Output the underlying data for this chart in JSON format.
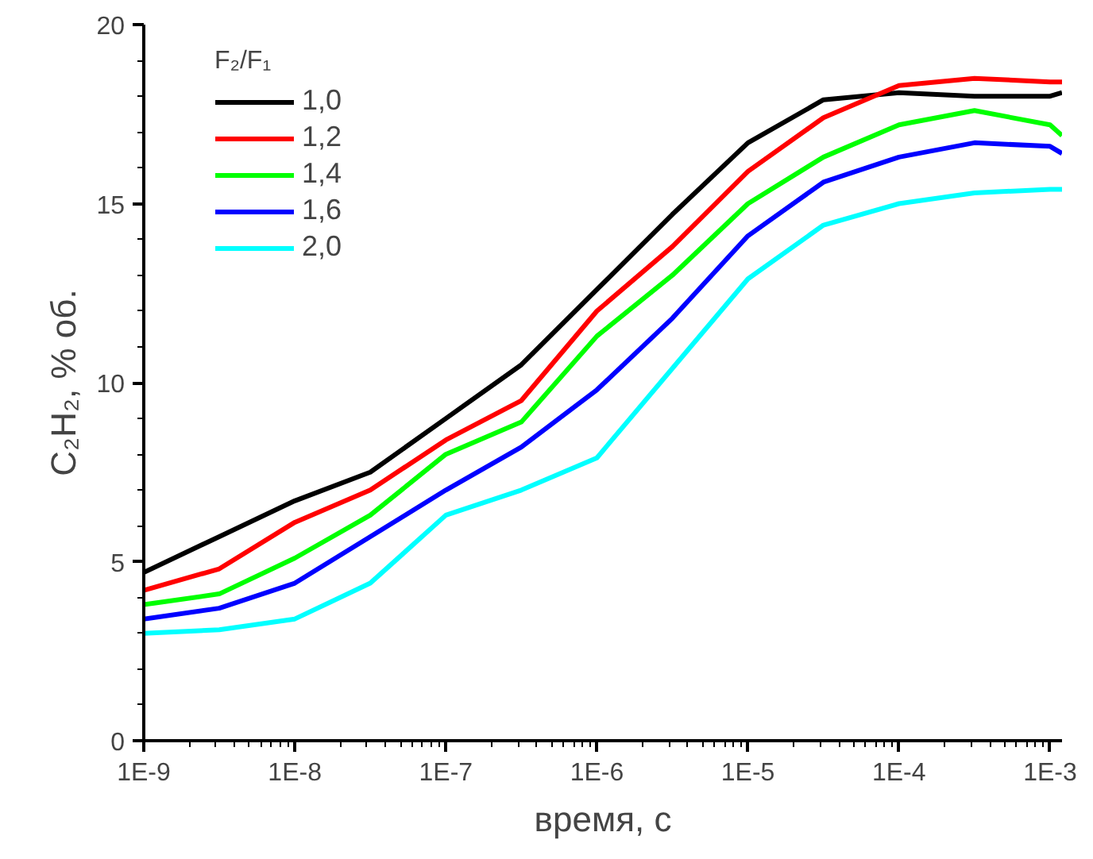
{
  "chart_data": {
    "type": "line",
    "xlabel": "время, с",
    "ylabel": "C₂H₂, % об.",
    "legend_title": "F₂/F₁",
    "legend": "top left",
    "grid": false,
    "log": "x",
    "x": [
      1e-09,
      3.16e-09,
      1e-08,
      3.16e-08,
      1e-07,
      3.16e-07,
      1e-06,
      3.16e-06,
      1e-05,
      3.16e-05,
      0.0001,
      0.000316,
      0.001,
      0.0012
    ],
    "xlim": [
      1e-09,
      0.0012
    ],
    "ylim": [
      0,
      20
    ],
    "xticks": [
      {
        "value": 1e-09,
        "label": "1E-9"
      },
      {
        "value": 1e-08,
        "label": "1E-8"
      },
      {
        "value": 1e-07,
        "label": "1E-7"
      },
      {
        "value": 1e-06,
        "label": "1E-6"
      },
      {
        "value": 1e-05,
        "label": "1E-5"
      },
      {
        "value": 0.0001,
        "label": "1E-4"
      },
      {
        "value": 0.001,
        "label": "1E-3"
      }
    ],
    "yticks": [
      0,
      5,
      10,
      15,
      20
    ],
    "series": [
      {
        "name": "1,0",
        "color": "#000000",
        "values": [
          4.7,
          5.7,
          6.7,
          7.5,
          9.0,
          10.5,
          12.6,
          14.7,
          16.7,
          17.9,
          18.1,
          18.0,
          18.0,
          18.1
        ]
      },
      {
        "name": "1,2",
        "color": "#ff0000",
        "values": [
          4.2,
          4.8,
          6.1,
          7.0,
          8.4,
          9.5,
          12.0,
          13.8,
          15.9,
          17.4,
          18.3,
          18.5,
          18.4,
          18.4
        ]
      },
      {
        "name": "1,4",
        "color": "#00ff00",
        "values": [
          3.8,
          4.1,
          5.1,
          6.3,
          8.0,
          8.9,
          11.3,
          13.0,
          15.0,
          16.3,
          17.2,
          17.6,
          17.2,
          16.9
        ]
      },
      {
        "name": "1,6",
        "color": "#0000ff",
        "values": [
          3.4,
          3.7,
          4.4,
          5.7,
          7.0,
          8.2,
          9.8,
          11.8,
          14.1,
          15.6,
          16.3,
          16.7,
          16.6,
          16.4
        ]
      },
      {
        "name": "2,0",
        "color": "#00ffff",
        "values": [
          3.0,
          3.1,
          3.4,
          4.4,
          6.3,
          7.0,
          7.9,
          10.4,
          12.9,
          14.4,
          15.0,
          15.3,
          15.4,
          15.4
        ]
      }
    ]
  }
}
